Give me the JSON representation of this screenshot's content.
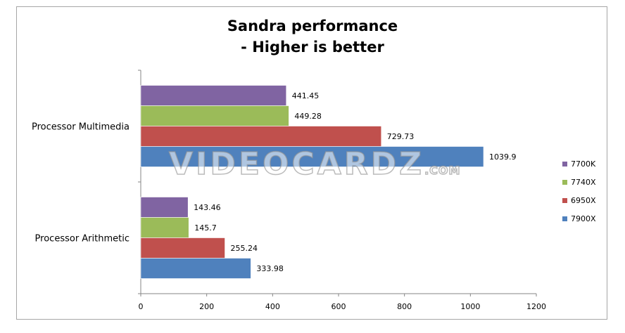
{
  "chart_data": {
    "type": "bar",
    "orientation": "horizontal",
    "title": "Sandra performance",
    "subtitle": "- Higher is better",
    "categories": [
      "Processor Multimedia",
      "Processor Arithmetic"
    ],
    "series": [
      {
        "name": "7700K",
        "color": "#8064a2",
        "values": [
          441.45,
          143.46
        ],
        "labels": [
          "441.45",
          "143.46"
        ]
      },
      {
        "name": "7740X",
        "color": "#9bbb59",
        "values": [
          449.28,
          145.7
        ],
        "labels": [
          "449.28",
          "145.7"
        ]
      },
      {
        "name": "6950X",
        "color": "#c0504d",
        "values": [
          729.73,
          255.24
        ],
        "labels": [
          "729.73",
          "255.24"
        ]
      },
      {
        "name": "7900X",
        "color": "#4f81bd",
        "values": [
          1039.9,
          333.98
        ],
        "labels": [
          "1039.9",
          "333.98"
        ]
      }
    ],
    "xlim": [
      0,
      1200
    ],
    "xticks": [
      0,
      200,
      400,
      600,
      800,
      1000,
      1200
    ],
    "grid": false,
    "legend_position": "right"
  },
  "watermark": {
    "main": "VIDEOCARDZ",
    "suffix": ".COM"
  }
}
